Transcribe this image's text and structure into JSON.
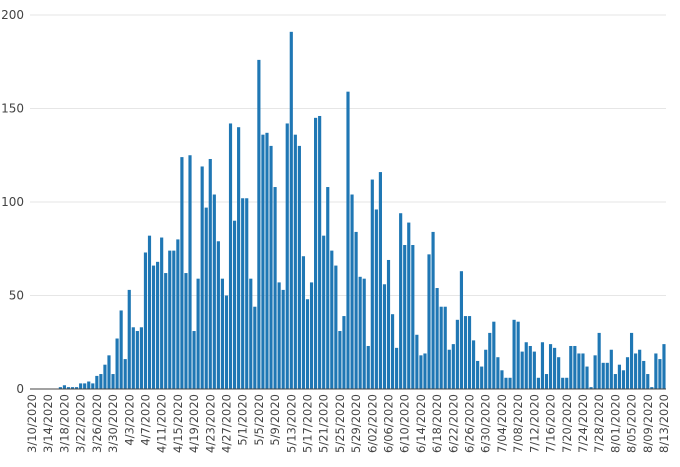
{
  "chart_data": {
    "type": "bar",
    "title": "",
    "xlabel": "",
    "ylabel": "",
    "ylim": [
      0,
      200
    ],
    "yticks": [
      0,
      50,
      100,
      150,
      200
    ],
    "grid": true,
    "colors": {
      "bar": "#1f77b4",
      "grid": "#e6e6e6",
      "text": "#444444"
    },
    "start_date": "2020-03-10",
    "x_tick_labels": [
      "3/10/2020",
      "3/14/2020",
      "3/18/2020",
      "3/22/2020",
      "3/26/2020",
      "3/30/2020",
      "4/3/2020",
      "4/7/2020",
      "4/11/2020",
      "4/15/2020",
      "4/19/2020",
      "4/23/2020",
      "4/27/2020",
      "5/1/2020",
      "5/5/2020",
      "5/9/2020",
      "5/13/2020",
      "5/17/2020",
      "5/21/2020",
      "5/25/2020",
      "5/29/2020",
      "6/02/2020",
      "6/06/2020",
      "6/10/2020",
      "6/14/2020",
      "6/18/2020",
      "6/22/2020",
      "6/26/2020",
      "6/30/2020",
      "7/04/2020",
      "7/08/2020",
      "7/12/2020",
      "7/16/2020",
      "7/20/2020",
      "7/24/2020",
      "7/28/2020",
      "8/01/2020",
      "8/05/2020",
      "8/09/2020",
      "8/13/2020"
    ],
    "values": [
      0,
      0,
      0,
      0,
      0,
      0,
      0,
      1,
      2,
      1,
      1,
      1,
      3,
      3,
      4,
      3,
      7,
      8,
      13,
      18,
      8,
      27,
      42,
      16,
      53,
      33,
      31,
      33,
      73,
      82,
      66,
      68,
      81,
      62,
      74,
      74,
      80,
      124,
      62,
      125,
      31,
      59,
      119,
      97,
      123,
      104,
      79,
      59,
      50,
      142,
      90,
      140,
      102,
      102,
      59,
      44,
      176,
      136,
      137,
      130,
      108,
      57,
      53,
      142,
      191,
      136,
      130,
      71,
      48,
      57,
      145,
      146,
      82,
      108,
      74,
      66,
      31,
      39,
      159,
      104,
      84,
      60,
      59,
      23,
      112,
      96,
      116,
      56,
      69,
      40,
      22,
      94,
      77,
      89,
      77,
      29,
      18,
      19,
      72,
      84,
      54,
      44,
      44,
      21,
      24,
      37,
      63,
      39,
      39,
      26,
      15,
      12,
      21,
      30,
      36,
      17,
      10,
      6,
      6,
      37,
      36,
      20,
      25,
      23,
      20,
      6,
      25,
      8,
      24,
      22,
      17,
      6,
      6,
      23,
      23,
      19,
      19,
      12,
      1,
      18,
      30,
      14,
      14,
      21,
      8,
      13,
      10,
      17,
      30,
      19,
      21,
      15,
      8,
      1,
      19,
      16,
      24
    ]
  }
}
